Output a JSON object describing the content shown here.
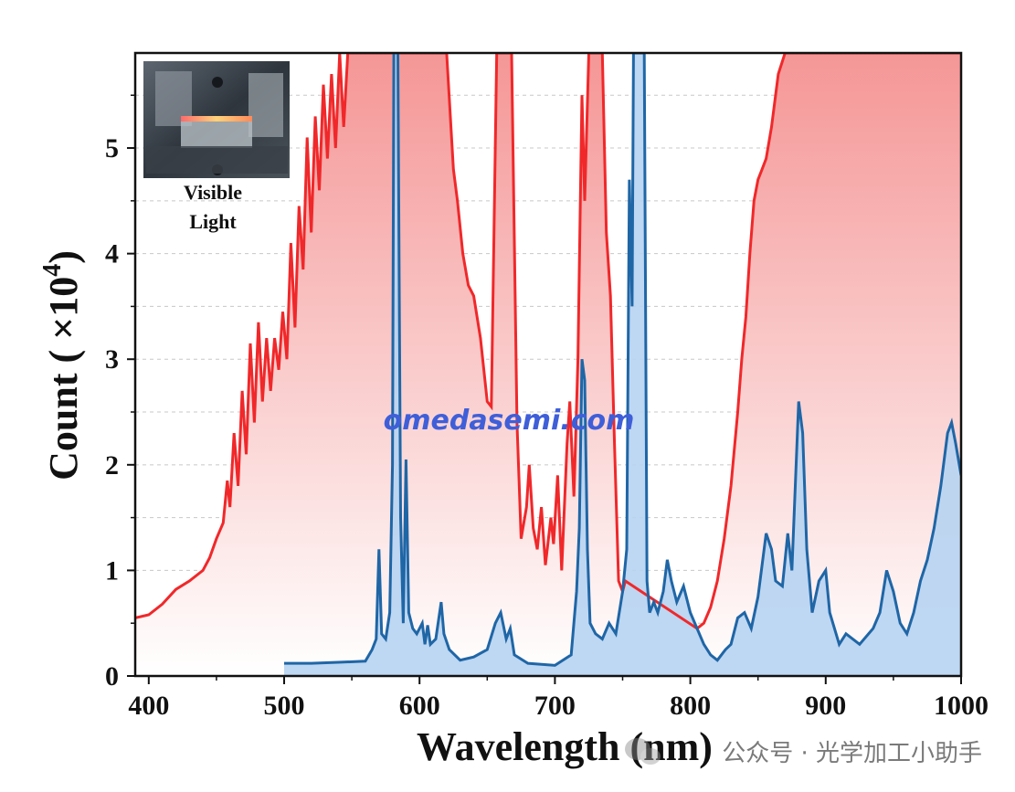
{
  "chart_data": {
    "type": "area",
    "title": "",
    "xlabel": "Wavelength (nm)",
    "ylabel": "Count ( ×10",
    "ylabel_exponent": "4",
    "ylabel_suffix": ")",
    "xlim": [
      390,
      1000
    ],
    "ylim": [
      0,
      5.9
    ],
    "xticks": [
      400,
      500,
      600,
      700,
      800,
      900,
      1000
    ],
    "yticks": [
      0,
      1,
      2,
      3,
      4,
      5
    ],
    "grid": "dashed horizontal",
    "series": [
      {
        "color": "#f0282a",
        "fill_top": "#f59696",
        "fill_bottom": "#ffffff",
        "points": [
          [
            390,
            0.55
          ],
          [
            400,
            0.58
          ],
          [
            410,
            0.68
          ],
          [
            420,
            0.82
          ],
          [
            430,
            0.9
          ],
          [
            440,
            1.0
          ],
          [
            445,
            1.12
          ],
          [
            450,
            1.3
          ],
          [
            455,
            1.45
          ],
          [
            458,
            1.85
          ],
          [
            460,
            1.6
          ],
          [
            463,
            2.3
          ],
          [
            466,
            1.8
          ],
          [
            469,
            2.7
          ],
          [
            472,
            2.1
          ],
          [
            475,
            3.15
          ],
          [
            478,
            2.4
          ],
          [
            481,
            3.35
          ],
          [
            484,
            2.6
          ],
          [
            487,
            3.2
          ],
          [
            490,
            2.7
          ],
          [
            493,
            3.2
          ],
          [
            496,
            2.9
          ],
          [
            499,
            3.45
          ],
          [
            502,
            3.0
          ],
          [
            505,
            4.1
          ],
          [
            508,
            3.3
          ],
          [
            511,
            4.45
          ],
          [
            514,
            3.85
          ],
          [
            517,
            5.1
          ],
          [
            520,
            4.2
          ],
          [
            523,
            5.3
          ],
          [
            526,
            4.6
          ],
          [
            529,
            5.6
          ],
          [
            532,
            4.9
          ],
          [
            535,
            5.7
          ],
          [
            538,
            5.0
          ],
          [
            541,
            5.9
          ],
          [
            544,
            5.2
          ],
          [
            547,
            5.9
          ],
          [
            550,
            5.9
          ],
          [
            620,
            5.9
          ],
          [
            625,
            4.8
          ],
          [
            628,
            4.5
          ],
          [
            632,
            4.0
          ],
          [
            636,
            3.7
          ],
          [
            640,
            3.6
          ],
          [
            645,
            3.2
          ],
          [
            650,
            2.6
          ],
          [
            653,
            2.55
          ],
          [
            657,
            5.9
          ],
          [
            668,
            5.9
          ],
          [
            672,
            2.4
          ],
          [
            675,
            1.3
          ],
          [
            679,
            1.6
          ],
          [
            681,
            2.0
          ],
          [
            684,
            1.4
          ],
          [
            687,
            1.2
          ],
          [
            690,
            1.6
          ],
          [
            693,
            1.05
          ],
          [
            697,
            1.5
          ],
          [
            699,
            1.25
          ],
          [
            702,
            1.9
          ],
          [
            705,
            1.0
          ],
          [
            709,
            2.2
          ],
          [
            711,
            2.6
          ],
          [
            714,
            1.7
          ],
          [
            717,
            3.0
          ],
          [
            720,
            5.5
          ],
          [
            722,
            4.5
          ],
          [
            725,
            5.9
          ],
          [
            735,
            5.9
          ],
          [
            738,
            4.2
          ],
          [
            741,
            3.6
          ],
          [
            744,
            2.2
          ],
          [
            747,
            0.9
          ],
          [
            750,
            0.8
          ],
          [
            752,
            0.9
          ],
          [
            805,
            0.45
          ],
          [
            810,
            0.5
          ],
          [
            815,
            0.65
          ],
          [
            820,
            0.9
          ],
          [
            825,
            1.3
          ],
          [
            830,
            1.8
          ],
          [
            835,
            2.5
          ],
          [
            838,
            3.0
          ],
          [
            841,
            3.4
          ],
          [
            844,
            4.0
          ],
          [
            847,
            4.5
          ],
          [
            850,
            4.7
          ],
          [
            853,
            4.8
          ],
          [
            856,
            4.9
          ],
          [
            860,
            5.2
          ],
          [
            865,
            5.7
          ],
          [
            870,
            5.9
          ],
          [
            1000,
            5.9
          ]
        ]
      },
      {
        "color": "#1f66a6",
        "fill_top": "#b9d4f1",
        "fill_bottom": "#b9d4f1",
        "points": [
          [
            500,
            0.12
          ],
          [
            520,
            0.12
          ],
          [
            540,
            0.13
          ],
          [
            560,
            0.14
          ],
          [
            565,
            0.25
          ],
          [
            568,
            0.35
          ],
          [
            570,
            1.2
          ],
          [
            572,
            0.4
          ],
          [
            575,
            0.35
          ],
          [
            578,
            0.6
          ],
          [
            580,
            2.0
          ],
          [
            581,
            5.9
          ],
          [
            584,
            5.9
          ],
          [
            586,
            1.5
          ],
          [
            588,
            0.5
          ],
          [
            590,
            2.05
          ],
          [
            592,
            0.6
          ],
          [
            595,
            0.45
          ],
          [
            598,
            0.4
          ],
          [
            602,
            0.5
          ],
          [
            604,
            0.3
          ],
          [
            606,
            0.48
          ],
          [
            608,
            0.3
          ],
          [
            612,
            0.35
          ],
          [
            616,
            0.7
          ],
          [
            618,
            0.4
          ],
          [
            622,
            0.25
          ],
          [
            630,
            0.15
          ],
          [
            640,
            0.18
          ],
          [
            650,
            0.25
          ],
          [
            656,
            0.5
          ],
          [
            660,
            0.6
          ],
          [
            664,
            0.35
          ],
          [
            667,
            0.45
          ],
          [
            670,
            0.2
          ],
          [
            680,
            0.12
          ],
          [
            700,
            0.1
          ],
          [
            712,
            0.2
          ],
          [
            716,
            0.8
          ],
          [
            718,
            1.4
          ],
          [
            720,
            3.0
          ],
          [
            722,
            2.8
          ],
          [
            724,
            1.2
          ],
          [
            726,
            0.5
          ],
          [
            730,
            0.4
          ],
          [
            735,
            0.35
          ],
          [
            740,
            0.5
          ],
          [
            745,
            0.4
          ],
          [
            750,
            0.8
          ],
          [
            753,
            1.2
          ],
          [
            755,
            4.7
          ],
          [
            757,
            3.5
          ],
          [
            758,
            5.9
          ],
          [
            766,
            5.9
          ],
          [
            768,
            0.9
          ],
          [
            770,
            0.6
          ],
          [
            773,
            0.7
          ],
          [
            776,
            0.6
          ],
          [
            780,
            0.8
          ],
          [
            783,
            1.1
          ],
          [
            786,
            0.9
          ],
          [
            790,
            0.7
          ],
          [
            795,
            0.85
          ],
          [
            800,
            0.6
          ],
          [
            805,
            0.45
          ],
          [
            810,
            0.3
          ],
          [
            815,
            0.2
          ],
          [
            820,
            0.15
          ],
          [
            826,
            0.25
          ],
          [
            830,
            0.3
          ],
          [
            835,
            0.55
          ],
          [
            840,
            0.6
          ],
          [
            845,
            0.45
          ],
          [
            850,
            0.75
          ],
          [
            856,
            1.35
          ],
          [
            860,
            1.2
          ],
          [
            863,
            0.9
          ],
          [
            868,
            0.85
          ],
          [
            872,
            1.35
          ],
          [
            875,
            1.0
          ],
          [
            880,
            2.6
          ],
          [
            883,
            2.3
          ],
          [
            886,
            1.2
          ],
          [
            890,
            0.6
          ],
          [
            895,
            0.9
          ],
          [
            900,
            1.0
          ],
          [
            903,
            0.6
          ],
          [
            910,
            0.3
          ],
          [
            915,
            0.4
          ],
          [
            925,
            0.3
          ],
          [
            935,
            0.45
          ],
          [
            940,
            0.6
          ],
          [
            945,
            1.0
          ],
          [
            950,
            0.8
          ],
          [
            955,
            0.5
          ],
          [
            960,
            0.4
          ],
          [
            965,
            0.6
          ],
          [
            970,
            0.9
          ],
          [
            975,
            1.1
          ],
          [
            980,
            1.4
          ],
          [
            985,
            1.8
          ],
          [
            990,
            2.3
          ],
          [
            993,
            2.4
          ],
          [
            996,
            2.2
          ],
          [
            1000,
            1.9
          ]
        ]
      }
    ]
  },
  "watermark": "omedasemi.com",
  "footer": "公众号 · 光学加工小助手",
  "inset": {
    "label_line1": "Visible",
    "label_line2": "Light"
  }
}
